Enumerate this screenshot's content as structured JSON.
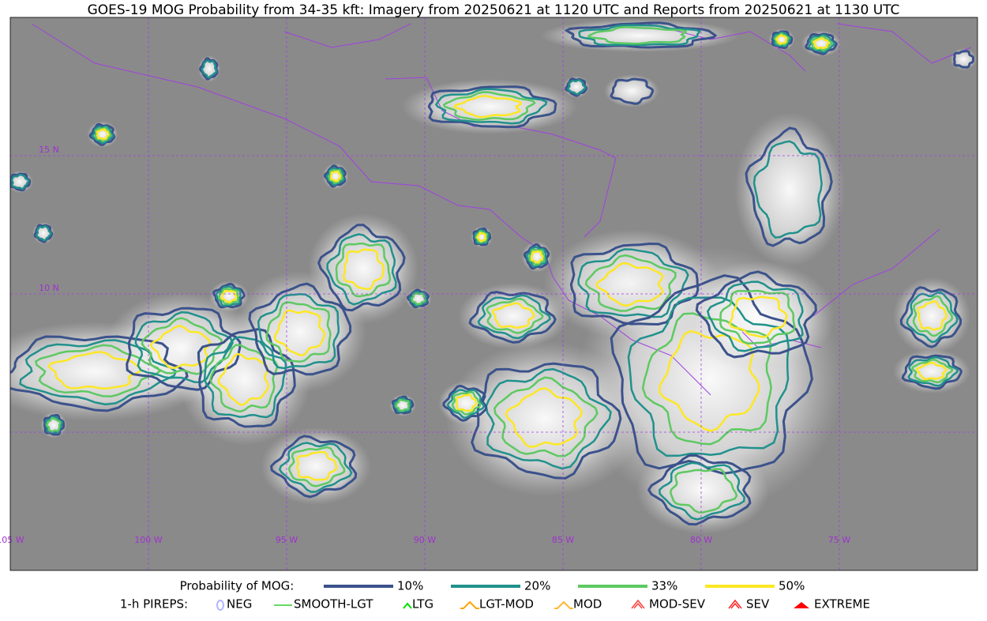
{
  "title": "GOES-19 MOG Probability from 34-35 kft: Imagery from 20250621 at 1120 UTC and Reports from 20250621 at 1130 UTC",
  "map": {
    "lat_labels": [
      "15 N",
      "10 N"
    ],
    "lon_labels": [
      "105 W",
      "100 W",
      "95 W",
      "90 W",
      "85 W",
      "80 W",
      "75 W"
    ]
  },
  "legend": {
    "probability": {
      "label": "Probability of MOG:",
      "items": [
        {
          "label": "10%",
          "color": "#3b528b"
        },
        {
          "label": "20%",
          "color": "#21918c"
        },
        {
          "label": "33%",
          "color": "#5ec962"
        },
        {
          "label": "50%",
          "color": "#fde725"
        }
      ]
    },
    "pireps": {
      "label": "1-h PIREPS:",
      "items": [
        {
          "label": "NEG",
          "color": "#b4b4ff"
        },
        {
          "label": "SMOOTH-LGT",
          "color": "#32cd32"
        },
        {
          "label": "LTG",
          "color": "#00e000"
        },
        {
          "label": "LGT-MOD",
          "color": "#ffa500"
        },
        {
          "label": "MOD",
          "color": "#ffb733"
        },
        {
          "label": "MOD-SEV",
          "color": "#ff4040"
        },
        {
          "label": "SEV",
          "color": "#ff2020"
        },
        {
          "label": "EXTREME",
          "color": "#ff0000"
        }
      ]
    }
  }
}
